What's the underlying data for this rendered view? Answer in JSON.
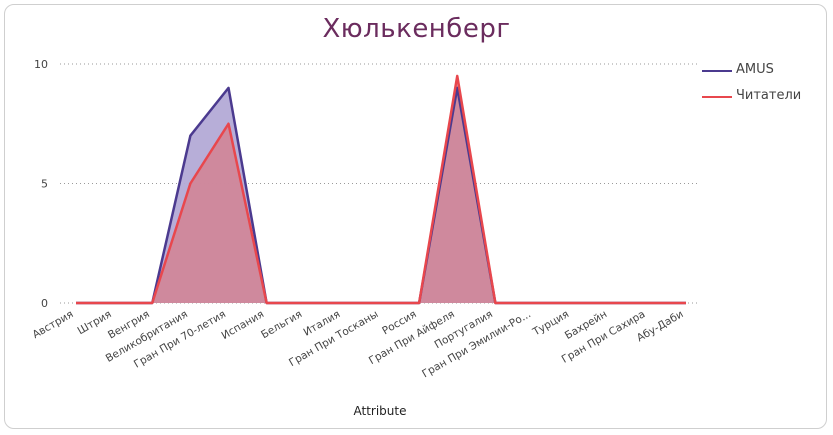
{
  "chart_data": {
    "type": "area",
    "title": "Хюлькенберг",
    "xlabel": "Attribute",
    "ylabel": "",
    "ylim": [
      0,
      10
    ],
    "yticks": [
      0,
      5,
      10
    ],
    "grid": true,
    "legend_position": "top-right",
    "categories": [
      "Австрия",
      "Штрия",
      "Венгрия",
      "Великобритания",
      "Гран При 70-летия",
      "Испания",
      "Бельгия",
      "Италия",
      "Гран При Тосканы",
      "Россия",
      "Гран При Айфеля",
      "Португалия",
      "Гран При Эмилии-Ро...",
      "Турция",
      "Бахрейн",
      "Гран При Сахира",
      "Абу-Даби"
    ],
    "series": [
      {
        "name": "AMUS",
        "color": "#4b3a8f",
        "fill": "#b3aad6",
        "values": [
          0,
          0,
          0,
          7,
          9,
          0,
          0,
          0,
          0,
          0,
          9,
          0,
          0,
          0,
          0,
          0,
          0
        ]
      },
      {
        "name": "Читатели",
        "color": "#e8474d",
        "fill": "#d4808f",
        "values": [
          0,
          0,
          0,
          5,
          7.5,
          0,
          0,
          0,
          0,
          0,
          9.5,
          0,
          0,
          0,
          0,
          0,
          0
        ]
      }
    ]
  }
}
